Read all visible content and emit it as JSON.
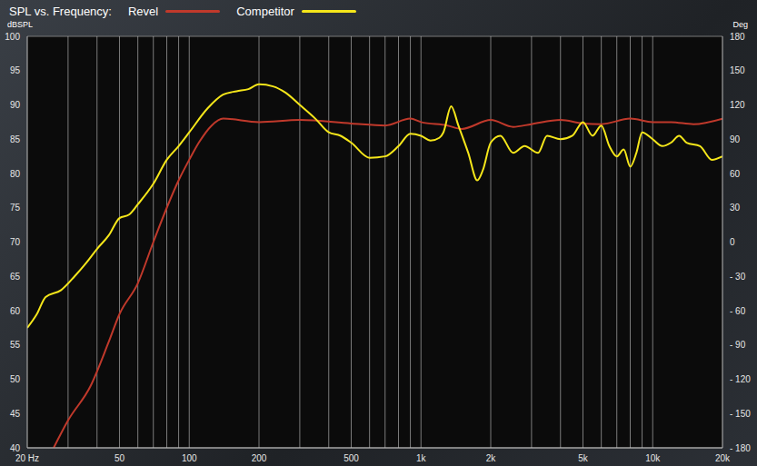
{
  "chart_data": {
    "type": "line",
    "title": "SPL vs. Frequency:",
    "y_label": "dBSPL",
    "y2_label": "Deg",
    "log": "x",
    "grid": true,
    "legend": "top",
    "xlim": [
      20,
      20000
    ],
    "xticks": [
      {
        "value": 20,
        "label": "20 Hz"
      },
      50,
      100,
      200,
      500,
      {
        "value": 1000,
        "label": "1k"
      },
      {
        "value": 2000,
        "label": "2k"
      },
      {
        "value": 5000,
        "label": "5k"
      },
      {
        "value": 10000,
        "label": "10k"
      },
      {
        "value": 20000,
        "label": "20k"
      }
    ],
    "ylim": [
      40,
      100
    ],
    "yticks": [
      40,
      45,
      50,
      55,
      60,
      65,
      70,
      75,
      80,
      85,
      90,
      95,
      100
    ],
    "y2lim": [
      -180,
      180
    ],
    "y2ticks": [
      {
        "value": -180,
        "label": "- 180"
      },
      {
        "value": -150,
        "label": "- 150"
      },
      {
        "value": -120,
        "label": "- 120"
      },
      {
        "value": -90,
        "label": "- 90"
      },
      {
        "value": -60,
        "label": "- 60"
      },
      {
        "value": -30,
        "label": "- 30"
      },
      0,
      30,
      60,
      90,
      120,
      150,
      180
    ],
    "series": [
      {
        "name": "Revel",
        "color": "#c0392b",
        "x": [
          26,
          30,
          37.5,
          45,
          50,
          60,
          70,
          80,
          90,
          100,
          110,
          125,
          140,
          200,
          300,
          500,
          700,
          900,
          1000,
          1300,
          1500,
          2000,
          2500,
          3000,
          4000,
          5000,
          6000,
          8000,
          10000,
          12000,
          15000,
          20000
        ],
        "values": [
          40,
          44,
          49,
          55.5,
          59.5,
          64,
          70,
          75,
          79,
          82,
          84.5,
          87,
          88,
          87.5,
          87.8,
          87.3,
          87,
          88,
          87.5,
          87,
          86.5,
          87.8,
          86.8,
          87.2,
          87.8,
          87.3,
          87.2,
          88,
          87.5,
          87.5,
          87.2,
          88
        ]
      },
      {
        "name": "Competitor",
        "color": "#f5e61a",
        "x": [
          20,
          22,
          24,
          28,
          32,
          36,
          40,
          45,
          50,
          55,
          60,
          70,
          80,
          90,
          100,
          120,
          140,
          160,
          180,
          200,
          230,
          260,
          300,
          350,
          400,
          450,
          500,
          600,
          700,
          800,
          900,
          1000,
          1100,
          1200,
          1250,
          1350,
          1450,
          1600,
          1750,
          1850,
          2000,
          2200,
          2500,
          2800,
          3200,
          3500,
          4000,
          4500,
          5000,
          5500,
          6000,
          6500,
          7000,
          7500,
          8000,
          8500,
          9000,
          10000,
          11000,
          12000,
          13000,
          14000,
          16000,
          18000,
          20000
        ],
        "values": [
          57.5,
          59.5,
          62,
          63,
          65,
          67,
          69,
          71,
          73.5,
          74,
          75.5,
          78.5,
          82,
          84,
          86,
          89.5,
          91.5,
          92,
          92.3,
          93,
          92.7,
          91.8,
          90,
          88,
          86,
          85.5,
          84.5,
          82.3,
          82.5,
          84,
          85.8,
          85.5,
          84.8,
          85.2,
          86,
          89.8,
          87,
          83,
          79,
          80.5,
          84.5,
          85.5,
          83,
          84,
          83,
          85.5,
          85,
          85.5,
          87.5,
          85.5,
          87,
          84,
          82.5,
          83.5,
          81,
          83,
          86,
          85,
          84,
          84.5,
          85.5,
          84.5,
          84,
          82,
          82.5
        ]
      }
    ]
  }
}
